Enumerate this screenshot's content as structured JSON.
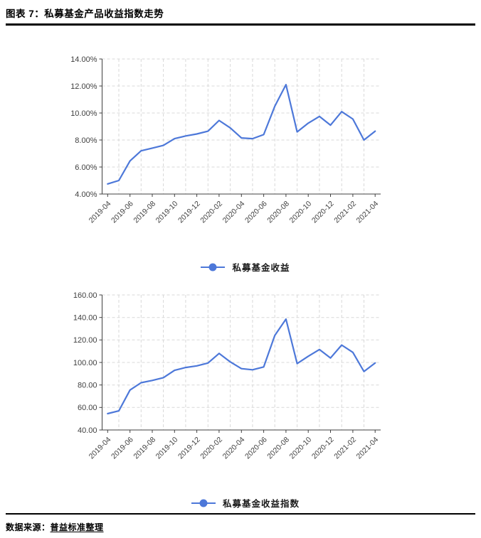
{
  "header": {
    "title": "图表 7：私募基金产品收益指数走势"
  },
  "footer": {
    "source_label": "数据来源：",
    "source_name": "普益标准整理"
  },
  "colors": {
    "line": "#4D78D9",
    "grid": "#D8D8D8",
    "axis": "#404040",
    "tick_label": "#404040"
  },
  "chart_data": [
    {
      "type": "line",
      "legend": "私募基金收益",
      "legend_position": "bottom",
      "line_color": "#4D78D9",
      "grid": "dashed",
      "x": [
        "2019-04",
        "2019-05",
        "2019-06",
        "2019-07",
        "2019-08",
        "2019-09",
        "2019-10",
        "2019-11",
        "2019-12",
        "2020-01",
        "2020-02",
        "2020-03",
        "2020-04",
        "2020-05",
        "2020-06",
        "2020-07",
        "2020-08",
        "2020-09",
        "2020-10",
        "2020-11",
        "2020-12",
        "2021-01",
        "2021-02",
        "2021-03",
        "2021-04"
      ],
      "label_every": 2,
      "x_tick_labels": [
        "2019-04",
        "2019-06",
        "2019-08",
        "2019-10",
        "2019-12",
        "2020-02",
        "2020-04",
        "2020-06",
        "2020-08",
        "2020-10",
        "2020-12",
        "2021-02",
        "2021-04"
      ],
      "values": [
        4.75,
        5.0,
        6.45,
        7.2,
        7.4,
        7.6,
        8.1,
        8.3,
        8.45,
        8.65,
        9.45,
        8.9,
        8.15,
        8.1,
        8.4,
        10.5,
        12.1,
        8.6,
        9.25,
        9.75,
        9.1,
        10.1,
        9.55,
        8.0,
        8.65
      ],
      "ylim": [
        4,
        14
      ],
      "y_step": 2,
      "y_ticks": [
        "4.00%",
        "6.00%",
        "8.00%",
        "10.00%",
        "12.00%",
        "14.00%"
      ]
    },
    {
      "type": "line",
      "legend": "私募基金收益指数",
      "legend_position": "bottom",
      "line_color": "#4D78D9",
      "grid": "dashed",
      "x": [
        "2019-04",
        "2019-05",
        "2019-06",
        "2019-07",
        "2019-08",
        "2019-09",
        "2019-10",
        "2019-11",
        "2019-12",
        "2020-01",
        "2020-02",
        "2020-03",
        "2020-04",
        "2020-05",
        "2020-06",
        "2020-07",
        "2020-08",
        "2020-09",
        "2020-10",
        "2020-11",
        "2020-12",
        "2021-01",
        "2021-02",
        "2021-03",
        "2021-04"
      ],
      "label_every": 2,
      "x_tick_labels": [
        "2019-04",
        "2019-06",
        "2019-08",
        "2019-10",
        "2019-12",
        "2020-02",
        "2020-04",
        "2020-06",
        "2020-08",
        "2020-10",
        "2020-12",
        "2021-02",
        "2021-04"
      ],
      "values": [
        54.5,
        57.0,
        75.5,
        82.0,
        84.0,
        86.5,
        93.0,
        95.5,
        97.0,
        99.5,
        108.0,
        100.5,
        94.5,
        93.5,
        96.0,
        124.0,
        138.5,
        99.0,
        105.5,
        111.5,
        104.0,
        115.5,
        109.0,
        92.0,
        99.5
      ],
      "ylim": [
        40,
        160
      ],
      "y_step": 20,
      "y_ticks": [
        "40.00",
        "60.00",
        "80.00",
        "100.00",
        "120.00",
        "140.00",
        "160.00"
      ]
    }
  ]
}
